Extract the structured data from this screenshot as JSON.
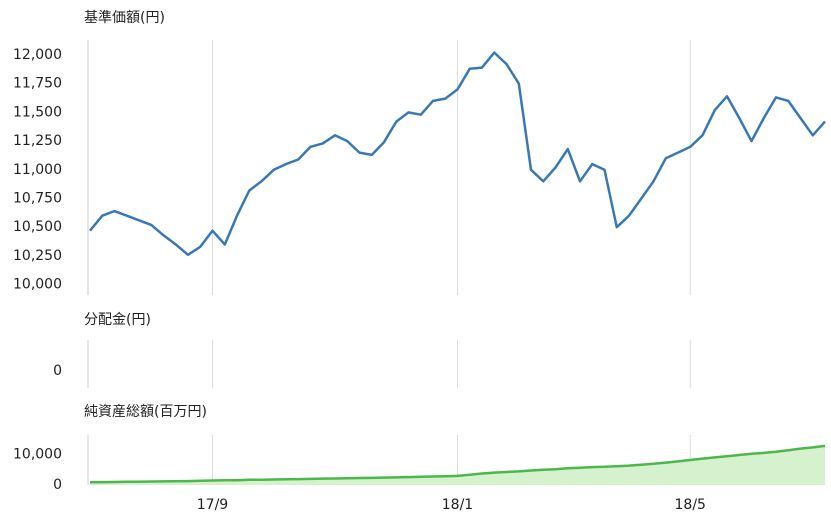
{
  "chart_data": {
    "type": "line",
    "categories": [
      null,
      null,
      null,
      null,
      null,
      null,
      null,
      null,
      null,
      null,
      "17/9",
      null,
      null,
      null,
      null,
      null,
      null,
      null,
      null,
      null,
      null,
      null,
      null,
      null,
      null,
      null,
      null,
      null,
      null,
      null,
      "18/1",
      null,
      null,
      null,
      null,
      null,
      null,
      null,
      null,
      null,
      null,
      null,
      null,
      null,
      null,
      null,
      null,
      null,
      null,
      "18/5",
      null,
      null,
      null,
      null,
      null,
      null,
      null,
      null,
      null,
      null,
      null
    ],
    "panels": [
      {
        "type": "line",
        "title": "基準価額(円)",
        "color": "#3a78b5",
        "ylim": [
          9910,
          12130
        ],
        "yticks": [
          {
            "value": 10000,
            "label": "10,000"
          },
          {
            "value": 10250,
            "label": "10,250"
          },
          {
            "value": 10500,
            "label": "10,500"
          },
          {
            "value": 10750,
            "label": "10,750"
          },
          {
            "value": 11000,
            "label": "11,000"
          },
          {
            "value": 11250,
            "label": "11,250"
          },
          {
            "value": 11500,
            "label": "11,500"
          },
          {
            "value": 11750,
            "label": "11,750"
          },
          {
            "value": 12000,
            "label": "12,000"
          }
        ],
        "values": [
          10470,
          10600,
          10640,
          10600,
          10560,
          10520,
          10430,
          10350,
          10260,
          10330,
          10470,
          10350,
          10600,
          10820,
          10900,
          11000,
          11050,
          11090,
          11200,
          11230,
          11300,
          11250,
          11150,
          11130,
          11240,
          11420,
          11500,
          11480,
          11600,
          11620,
          11700,
          11880,
          11890,
          12020,
          11920,
          11750,
          11000,
          10900,
          11020,
          11180,
          10900,
          11050,
          11000,
          10500,
          10600,
          10750,
          10900,
          11100,
          11150,
          11200,
          11300,
          11520,
          11640,
          11450,
          11250,
          11450,
          11630,
          11600,
          11450,
          11300,
          11420
        ]
      },
      {
        "type": "bar",
        "title": "分配金(円)",
        "ylim": [
          -1,
          1.8
        ],
        "yticks": [
          0
        ]
      },
      {
        "type": "area",
        "title": "純資産総額(百万円)",
        "color": "#4cb84c",
        "ylim": [
          0,
          16500
        ],
        "yticks": [
          0,
          {
            "value": 10000,
            "label": "10,000"
          }
        ],
        "values": [
          900,
          950,
          1000,
          1050,
          1100,
          1150,
          1200,
          1250,
          1300,
          1400,
          1500,
          1550,
          1600,
          1700,
          1750,
          1800,
          1900,
          1950,
          2000,
          2100,
          2150,
          2200,
          2300,
          2350,
          2450,
          2500,
          2600,
          2700,
          2800,
          2900,
          3000,
          3400,
          3800,
          4100,
          4300,
          4500,
          4800,
          5000,
          5200,
          5500,
          5700,
          5900,
          6000,
          6200,
          6400,
          6700,
          7000,
          7400,
          7800,
          8250,
          8700,
          9100,
          9500,
          9900,
          10300,
          10600,
          11000,
          11500,
          12000,
          12400,
          12900
        ]
      }
    ]
  }
}
